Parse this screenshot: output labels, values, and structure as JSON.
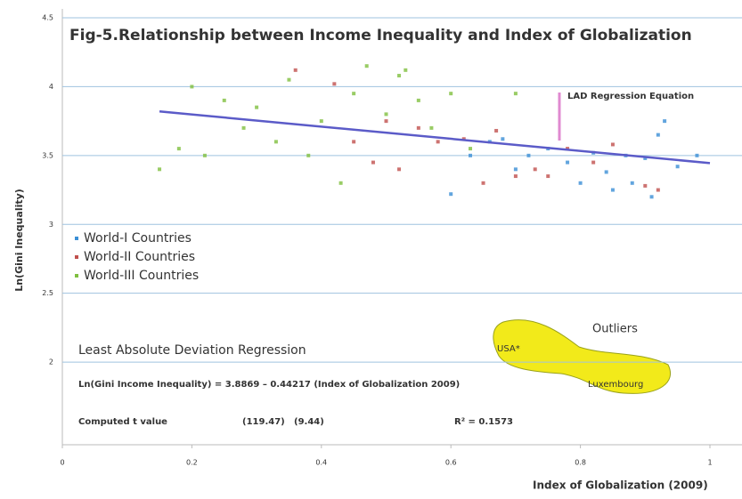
{
  "chart_data": {
    "type": "scatter",
    "title": "Fig-5.Relationship between Income Inequality and Index of Globalization",
    "x_label": "Index of Globalization (2009)",
    "y_label": "Ln(Gini Inequality)",
    "xlim": [
      0,
      1.05
    ],
    "ylim": [
      1.4,
      4.5
    ],
    "xticks": [
      0,
      0.2,
      0.4,
      0.6,
      0.8,
      1
    ],
    "yticks": [
      2,
      2.5,
      3,
      3.5,
      4,
      4.5
    ],
    "grid": true,
    "legend": "left",
    "series": [
      {
        "name": "World-I Countries",
        "color": "#3b8fd6",
        "x": [
          0.6,
          0.63,
          0.66,
          0.68,
          0.7,
          0.72,
          0.75,
          0.78,
          0.8,
          0.82,
          0.84,
          0.85,
          0.87,
          0.88,
          0.9,
          0.91,
          0.92,
          0.93,
          0.95,
          0.98
        ],
        "values": [
          3.22,
          3.5,
          3.6,
          3.62,
          3.4,
          3.5,
          3.55,
          3.45,
          3.3,
          3.52,
          3.38,
          3.25,
          3.5,
          3.3,
          3.48,
          3.2,
          3.65,
          3.75,
          3.42,
          3.5
        ]
      },
      {
        "name": "World-II Countries",
        "color": "#c0504d",
        "x": [
          0.36,
          0.42,
          0.45,
          0.48,
          0.5,
          0.52,
          0.55,
          0.58,
          0.62,
          0.65,
          0.67,
          0.7,
          0.73,
          0.75,
          0.78,
          0.82,
          0.85,
          0.9,
          0.92
        ],
        "values": [
          4.12,
          4.02,
          3.6,
          3.45,
          3.75,
          3.4,
          3.7,
          3.6,
          3.62,
          3.3,
          3.68,
          3.35,
          3.4,
          3.35,
          3.55,
          3.45,
          3.58,
          3.28,
          3.25
        ]
      },
      {
        "name": "World-III Countries",
        "color": "#7fbf3f",
        "x": [
          0.15,
          0.18,
          0.2,
          0.22,
          0.25,
          0.28,
          0.3,
          0.33,
          0.35,
          0.38,
          0.4,
          0.43,
          0.45,
          0.47,
          0.5,
          0.52,
          0.53,
          0.55,
          0.57,
          0.6,
          0.63,
          0.7
        ],
        "values": [
          3.4,
          3.55,
          4.0,
          3.5,
          3.9,
          3.7,
          3.85,
          3.6,
          4.05,
          3.5,
          3.75,
          3.3,
          3.95,
          4.15,
          3.8,
          4.08,
          4.12,
          3.9,
          3.7,
          3.95,
          3.55,
          3.95
        ]
      }
    ],
    "fit_line": {
      "color": "#5b5bc8",
      "x": [
        0.15,
        1
      ],
      "values": [
        3.82,
        3.445
      ]
    },
    "annotations": {
      "lad_label": "LAD Regression Equation",
      "method": "Least Absolute Deviation Regression",
      "equation": "Ln(Gini Income Inequality) = 3.8869 – 0.44217 (Index of Globalization 2009)",
      "t_label": "Computed t value",
      "t1": "(119.47)",
      "t2": "(9.44)",
      "r2": "R² = 0.1573",
      "outliers": "Outliers",
      "usa": "USA*",
      "lux": "Luxembourg"
    }
  }
}
